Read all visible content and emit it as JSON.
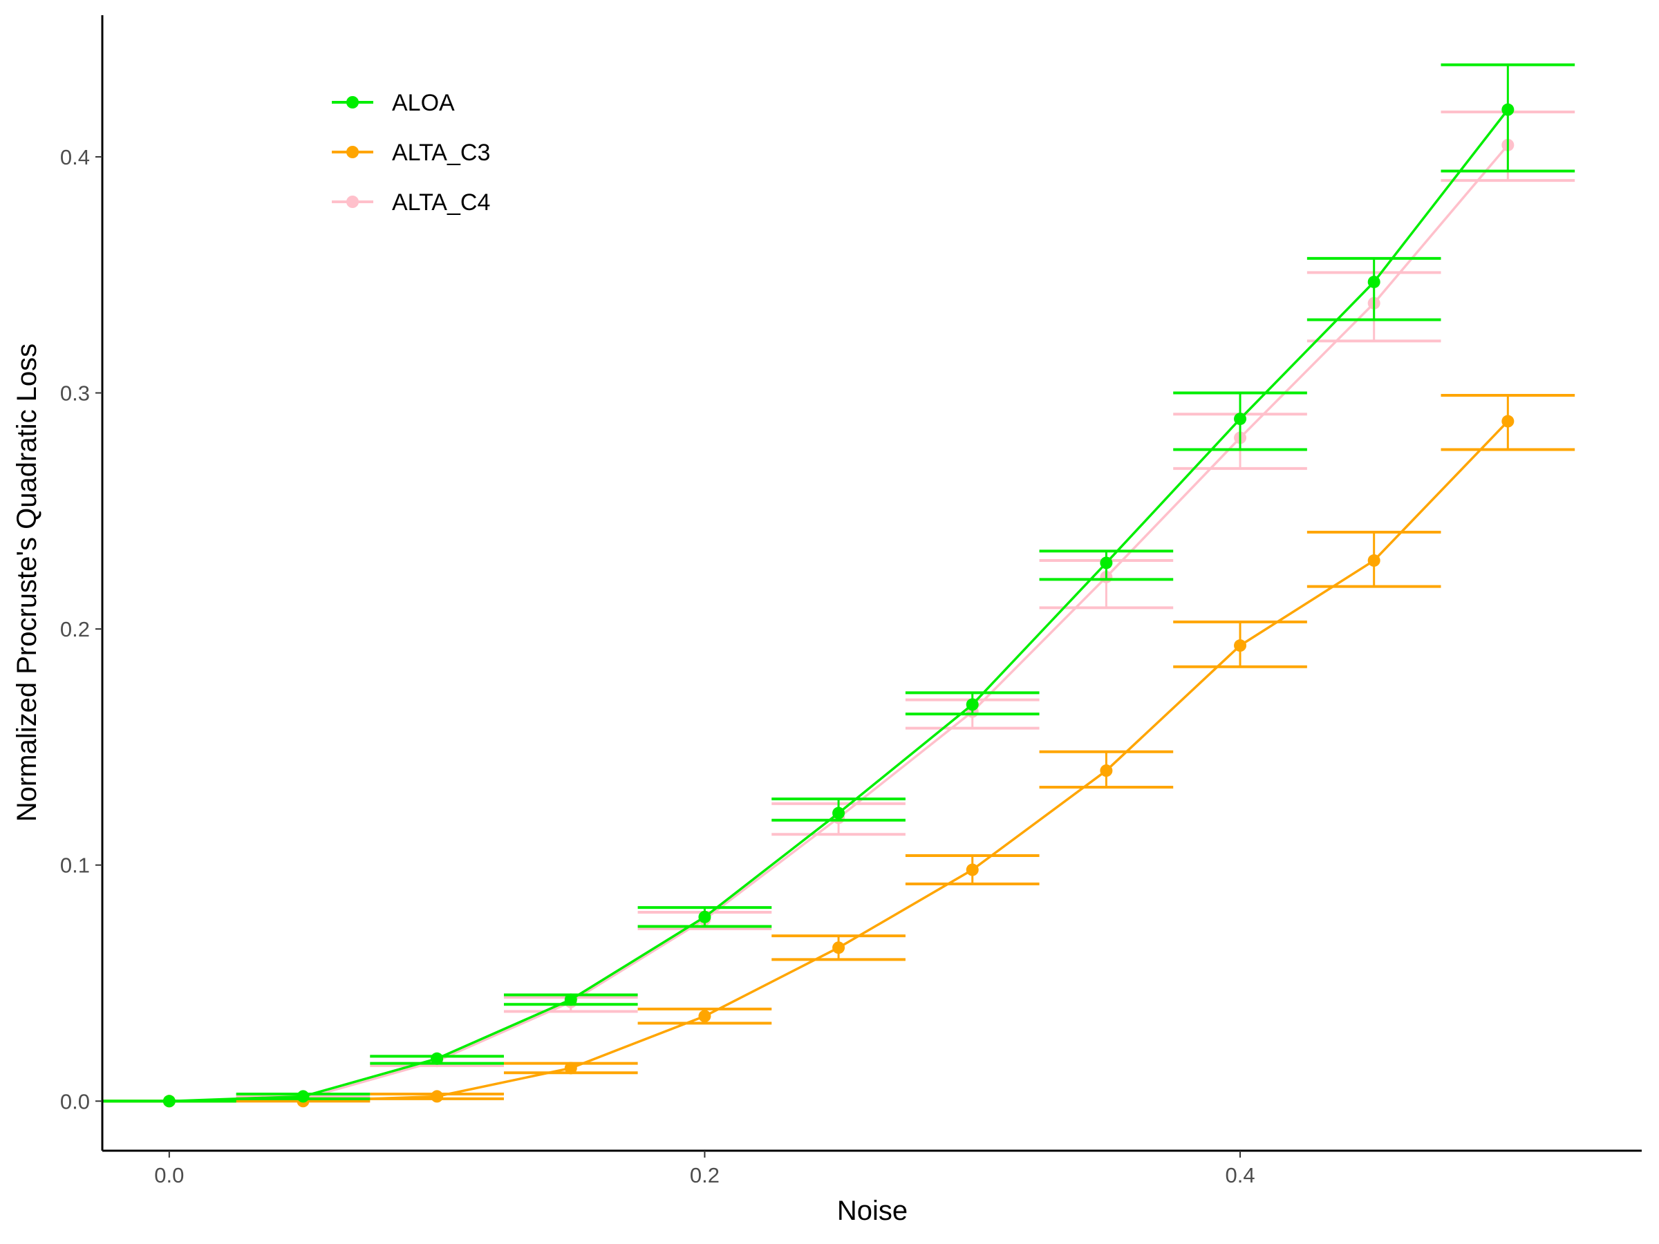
{
  "chart_data": {
    "type": "line",
    "title": "",
    "xlabel": "Noise",
    "ylabel": "Normalized Procruste's Quadratic Loss",
    "xlim": [
      -0.025,
      0.55
    ],
    "ylim": [
      -0.021,
      0.46
    ],
    "x_ticks": [
      0.0,
      0.2,
      0.4
    ],
    "x_tick_labels": [
      "0.0",
      "0.2",
      "0.4"
    ],
    "y_ticks": [
      0.0,
      0.1,
      0.2,
      0.3,
      0.4
    ],
    "y_tick_labels": [
      "0.0",
      "0.1",
      "0.2",
      "0.3",
      "0.4"
    ],
    "grid": false,
    "legend_position": "top-left",
    "error_bar_half_width": 0.025,
    "x": [
      0.0,
      0.05,
      0.1,
      0.15,
      0.2,
      0.25,
      0.3,
      0.35,
      0.4,
      0.45,
      0.5
    ],
    "series": [
      {
        "name": "ALOA",
        "color": "#00ee00",
        "values": [
          0.0,
          0.002,
          0.018,
          0.043,
          0.078,
          0.122,
          0.168,
          0.228,
          0.289,
          0.347,
          0.42
        ],
        "err_low": [
          0.0,
          0.001,
          0.016,
          0.041,
          0.074,
          0.119,
          0.164,
          0.221,
          0.276,
          0.331,
          0.394
        ],
        "err_high": [
          0.0,
          0.003,
          0.019,
          0.045,
          0.082,
          0.128,
          0.173,
          0.233,
          0.3,
          0.357,
          0.439
        ]
      },
      {
        "name": "ALTA_C3",
        "color": "#ffa500",
        "values": [
          0.0,
          0.0,
          0.002,
          0.014,
          0.036,
          0.065,
          0.098,
          0.14,
          0.193,
          0.229,
          0.288
        ],
        "err_low": [
          0.0,
          0.0,
          0.001,
          0.012,
          0.033,
          0.06,
          0.092,
          0.133,
          0.184,
          0.218,
          0.276
        ],
        "err_high": [
          0.0,
          0.001,
          0.003,
          0.016,
          0.039,
          0.07,
          0.104,
          0.148,
          0.203,
          0.241,
          0.299
        ]
      },
      {
        "name": "ALTA_C4",
        "color": "#ffc0cb",
        "values": [
          0.0,
          0.001,
          0.017,
          0.042,
          0.077,
          0.12,
          0.165,
          0.222,
          0.281,
          0.338,
          0.405
        ],
        "err_low": [
          0.0,
          0.0,
          0.015,
          0.038,
          0.073,
          0.113,
          0.158,
          0.209,
          0.268,
          0.322,
          0.39
        ],
        "err_high": [
          0.0,
          0.002,
          0.019,
          0.044,
          0.08,
          0.126,
          0.17,
          0.229,
          0.291,
          0.351,
          0.419
        ]
      }
    ]
  }
}
